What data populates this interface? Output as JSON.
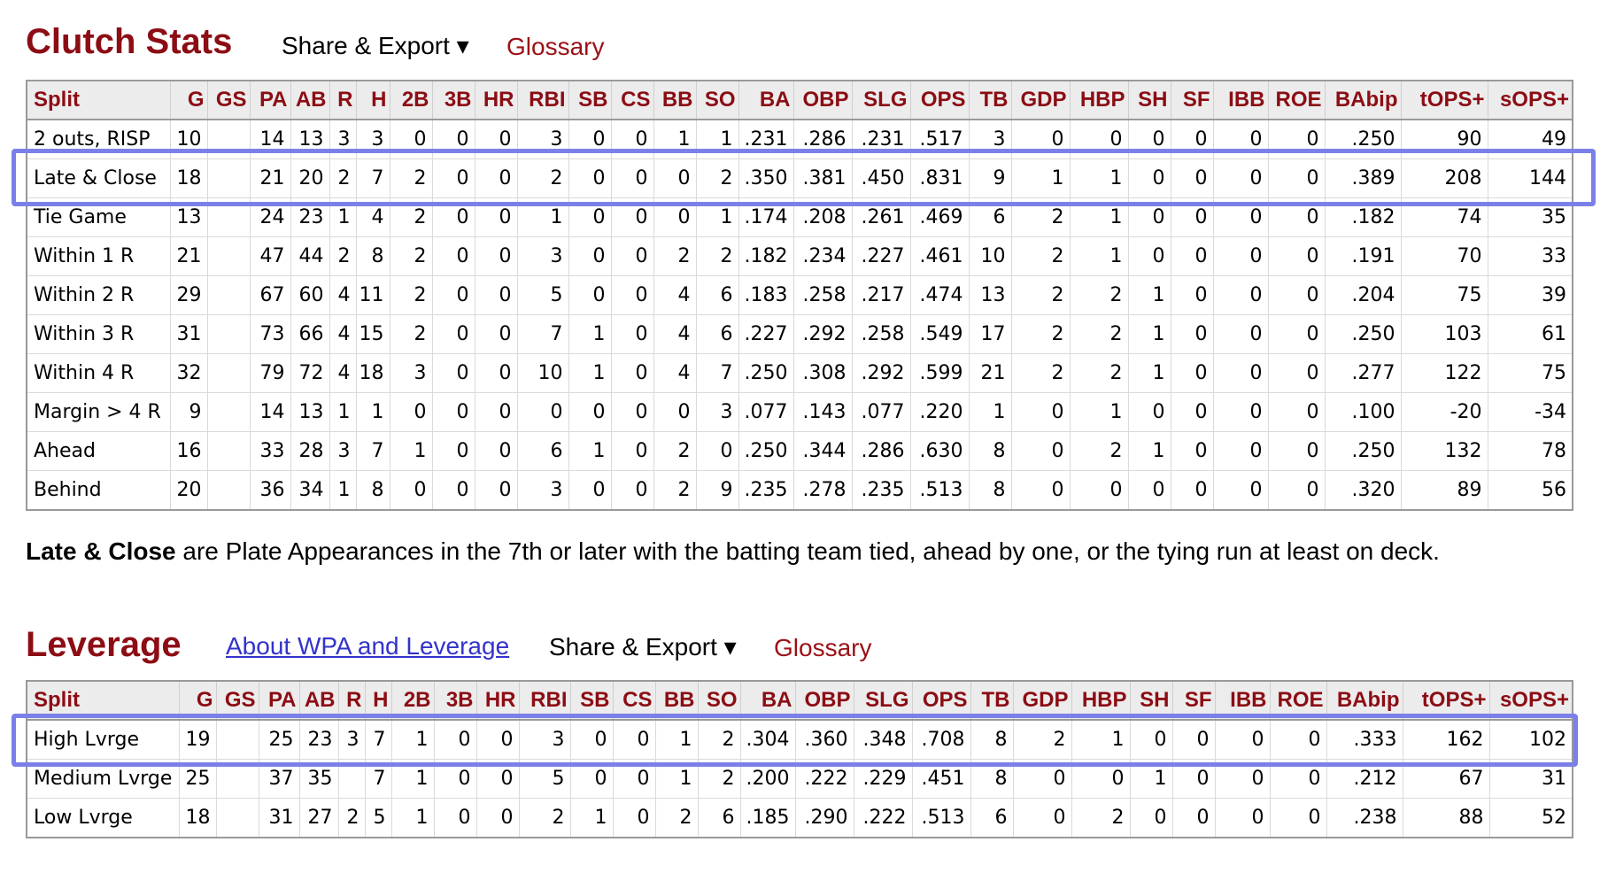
{
  "clutch": {
    "title": "Clutch Stats",
    "share_label": "Share & Export ▾",
    "glossary_label": "Glossary",
    "columns": [
      "Split",
      "G",
      "GS",
      "PA",
      "AB",
      "R",
      "H",
      "2B",
      "3B",
      "HR",
      "RBI",
      "SB",
      "CS",
      "BB",
      "SO",
      "BA",
      "OBP",
      "SLG",
      "OPS",
      "TB",
      "GDP",
      "HBP",
      "SH",
      "SF",
      "IBB",
      "ROE",
      "BAbip",
      "tOPS+",
      "sOPS+"
    ],
    "rows": [
      [
        "2 outs, RISP",
        "10",
        "",
        "14",
        "13",
        "3",
        "3",
        "0",
        "0",
        "0",
        "3",
        "0",
        "0",
        "1",
        "1",
        ".231",
        ".286",
        ".231",
        ".517",
        "3",
        "0",
        "0",
        "0",
        "0",
        "0",
        "0",
        ".250",
        "90",
        "49"
      ],
      [
        "Late & Close",
        "18",
        "",
        "21",
        "20",
        "2",
        "7",
        "2",
        "0",
        "0",
        "2",
        "0",
        "0",
        "0",
        "2",
        ".350",
        ".381",
        ".450",
        ".831",
        "9",
        "1",
        "1",
        "0",
        "0",
        "0",
        "0",
        ".389",
        "208",
        "144"
      ],
      [
        "Tie Game",
        "13",
        "",
        "24",
        "23",
        "1",
        "4",
        "2",
        "0",
        "0",
        "1",
        "0",
        "0",
        "0",
        "1",
        ".174",
        ".208",
        ".261",
        ".469",
        "6",
        "2",
        "1",
        "0",
        "0",
        "0",
        "0",
        ".182",
        "74",
        "35"
      ],
      [
        "Within 1 R",
        "21",
        "",
        "47",
        "44",
        "2",
        "8",
        "2",
        "0",
        "0",
        "3",
        "0",
        "0",
        "2",
        "2",
        ".182",
        ".234",
        ".227",
        ".461",
        "10",
        "2",
        "1",
        "0",
        "0",
        "0",
        "0",
        ".191",
        "70",
        "33"
      ],
      [
        "Within 2 R",
        "29",
        "",
        "67",
        "60",
        "4",
        "11",
        "2",
        "0",
        "0",
        "5",
        "0",
        "0",
        "4",
        "6",
        ".183",
        ".258",
        ".217",
        ".474",
        "13",
        "2",
        "2",
        "1",
        "0",
        "0",
        "0",
        ".204",
        "75",
        "39"
      ],
      [
        "Within 3 R",
        "31",
        "",
        "73",
        "66",
        "4",
        "15",
        "2",
        "0",
        "0",
        "7",
        "1",
        "0",
        "4",
        "6",
        ".227",
        ".292",
        ".258",
        ".549",
        "17",
        "2",
        "2",
        "1",
        "0",
        "0",
        "0",
        ".250",
        "103",
        "61"
      ],
      [
        "Within 4 R",
        "32",
        "",
        "79",
        "72",
        "4",
        "18",
        "3",
        "0",
        "0",
        "10",
        "1",
        "0",
        "4",
        "7",
        ".250",
        ".308",
        ".292",
        ".599",
        "21",
        "2",
        "2",
        "1",
        "0",
        "0",
        "0",
        ".277",
        "122",
        "75"
      ],
      [
        "Margin > 4 R",
        "9",
        "",
        "14",
        "13",
        "1",
        "1",
        "0",
        "0",
        "0",
        "0",
        "0",
        "0",
        "0",
        "3",
        ".077",
        ".143",
        ".077",
        ".220",
        "1",
        "0",
        "1",
        "0",
        "0",
        "0",
        "0",
        ".100",
        "-20",
        "-34"
      ],
      [
        "Ahead",
        "16",
        "",
        "33",
        "28",
        "3",
        "7",
        "1",
        "0",
        "0",
        "6",
        "1",
        "0",
        "2",
        "0",
        ".250",
        ".344",
        ".286",
        ".630",
        "8",
        "0",
        "2",
        "1",
        "0",
        "0",
        "0",
        ".250",
        "132",
        "78"
      ],
      [
        "Behind",
        "20",
        "",
        "36",
        "34",
        "1",
        "8",
        "0",
        "0",
        "0",
        "3",
        "0",
        "0",
        "2",
        "9",
        ".235",
        ".278",
        ".235",
        ".513",
        "8",
        "0",
        "0",
        "0",
        "0",
        "0",
        "0",
        ".320",
        "89",
        "56"
      ]
    ]
  },
  "note": {
    "bold": "Late & Close",
    "text": " are Plate Appearances in the 7th or later with the batting team tied, ahead by one, or the tying run at least on deck."
  },
  "leverage": {
    "title": "Leverage",
    "about_label": "About WPA and Leverage",
    "share_label": "Share & Export ▾",
    "glossary_label": "Glossary",
    "columns": [
      "Split",
      "G",
      "GS",
      "PA",
      "AB",
      "R",
      "H",
      "2B",
      "3B",
      "HR",
      "RBI",
      "SB",
      "CS",
      "BB",
      "SO",
      "BA",
      "OBP",
      "SLG",
      "OPS",
      "TB",
      "GDP",
      "HBP",
      "SH",
      "SF",
      "IBB",
      "ROE",
      "BAbip",
      "tOPS+",
      "sOPS+"
    ],
    "rows": [
      [
        "High Lvrge",
        "19",
        "",
        "25",
        "23",
        "3",
        "7",
        "1",
        "0",
        "0",
        "3",
        "0",
        "0",
        "1",
        "2",
        ".304",
        ".360",
        ".348",
        ".708",
        "8",
        "2",
        "1",
        "0",
        "0",
        "0",
        "0",
        ".333",
        "162",
        "102"
      ],
      [
        "Medium Lvrge",
        "25",
        "",
        "37",
        "35",
        "",
        "7",
        "1",
        "0",
        "0",
        "5",
        "0",
        "0",
        "1",
        "2",
        ".200",
        ".222",
        ".229",
        ".451",
        "8",
        "0",
        "0",
        "1",
        "0",
        "0",
        "0",
        ".212",
        "67",
        "31"
      ],
      [
        "Low Lvrge",
        "18",
        "",
        "31",
        "27",
        "2",
        "5",
        "1",
        "0",
        "0",
        "2",
        "1",
        "0",
        "2",
        "6",
        ".185",
        ".290",
        ".222",
        ".513",
        "6",
        "0",
        "2",
        "0",
        "0",
        "0",
        "0",
        ".238",
        "88",
        "52"
      ]
    ]
  }
}
